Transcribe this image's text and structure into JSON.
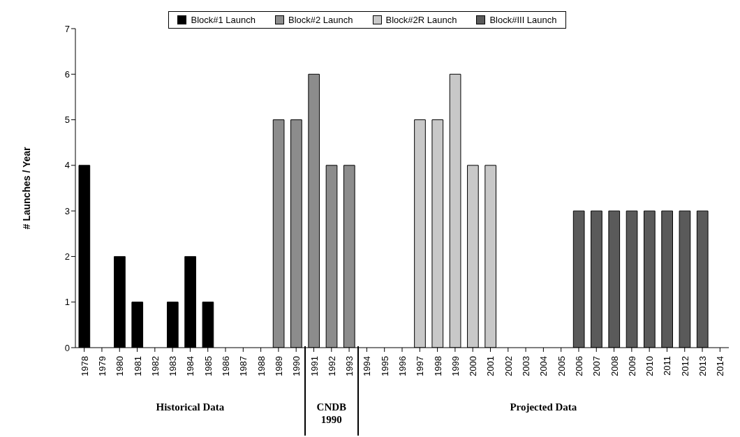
{
  "chart_data": {
    "type": "bar",
    "ylabel": "# Launches / Year",
    "categories": [
      "1978",
      "1979",
      "1980",
      "1981",
      "1982",
      "1983",
      "1984",
      "1985",
      "1986",
      "1987",
      "1988",
      "1989",
      "1990",
      "1991",
      "1992",
      "1993",
      "1994",
      "1995",
      "1996",
      "1997",
      "1998",
      "1999",
      "2000",
      "2001",
      "2002",
      "2003",
      "2004",
      "2005",
      "2006",
      "2007",
      "2008",
      "2009",
      "2010",
      "2011",
      "2012",
      "2013",
      "2014"
    ],
    "series": [
      {
        "name": "Block#1 Launch",
        "color": "#000000",
        "values": [
          4,
          null,
          2,
          1,
          null,
          1,
          2,
          1,
          null,
          null,
          null,
          null,
          null,
          null,
          null,
          null,
          null,
          null,
          null,
          null,
          null,
          null,
          null,
          null,
          null,
          null,
          null,
          null,
          null,
          null,
          null,
          null,
          null,
          null,
          null,
          null,
          null
        ]
      },
      {
        "name": "Block#2 Launch",
        "color": "#8c8c8c",
        "values": [
          null,
          null,
          null,
          null,
          null,
          null,
          null,
          null,
          null,
          null,
          null,
          5,
          5,
          6,
          4,
          4,
          null,
          null,
          null,
          null,
          null,
          null,
          null,
          null,
          null,
          null,
          null,
          null,
          null,
          null,
          null,
          null,
          null,
          null,
          null,
          null,
          null
        ]
      },
      {
        "name": "Block#2R Launch",
        "color": "#c8c8c8",
        "values": [
          null,
          null,
          null,
          null,
          null,
          null,
          null,
          null,
          null,
          null,
          null,
          null,
          null,
          null,
          null,
          null,
          null,
          null,
          null,
          5,
          5,
          6,
          4,
          4,
          null,
          null,
          null,
          null,
          null,
          null,
          null,
          null,
          null,
          null,
          null,
          null,
          null
        ]
      },
      {
        "name": "Block#III Launch",
        "color": "#5a5a5a",
        "values": [
          null,
          null,
          null,
          null,
          null,
          null,
          null,
          null,
          null,
          null,
          null,
          null,
          null,
          null,
          null,
          null,
          null,
          null,
          null,
          null,
          null,
          null,
          null,
          null,
          null,
          null,
          null,
          null,
          3,
          3,
          3,
          3,
          3,
          3,
          3,
          3,
          null
        ]
      }
    ],
    "stacked": true,
    "ylim": [
      0,
      7
    ],
    "yticks": [
      0,
      1,
      2,
      3,
      4,
      5,
      6,
      7
    ],
    "grid": false,
    "legend": "top",
    "annotations": [
      "Historical Data",
      "CNDB 1990",
      "Projected Data"
    ]
  }
}
